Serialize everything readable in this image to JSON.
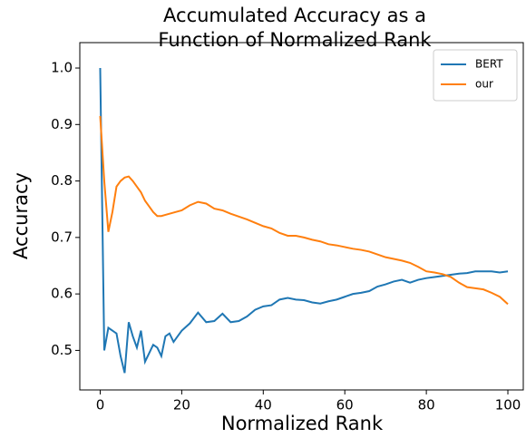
{
  "chart_data": {
    "type": "line",
    "title": [
      "Accumulated Accuracy as a",
      "Function of Normalized Rank"
    ],
    "xlabel": "Normalized Rank",
    "ylabel": "Accuracy",
    "x": [
      0,
      1,
      2,
      3,
      4,
      5,
      6,
      7,
      8,
      9,
      10,
      11,
      12,
      13,
      14,
      15,
      16,
      17,
      18,
      19,
      20,
      22,
      24,
      26,
      28,
      30,
      32,
      34,
      36,
      38,
      40,
      42,
      44,
      46,
      48,
      50,
      52,
      54,
      56,
      58,
      60,
      62,
      64,
      66,
      68,
      70,
      72,
      74,
      76,
      78,
      80,
      82,
      84,
      86,
      88,
      90,
      92,
      94,
      96,
      98,
      100
    ],
    "series": [
      {
        "name": "BERT",
        "color": "#1f77b4",
        "values": [
          1.0,
          0.5,
          0.54,
          0.535,
          0.53,
          0.49,
          0.46,
          0.55,
          0.525,
          0.505,
          0.535,
          0.48,
          0.495,
          0.51,
          0.505,
          0.49,
          0.525,
          0.53,
          0.515,
          0.525,
          0.535,
          0.548,
          0.567,
          0.55,
          0.552,
          0.565,
          0.55,
          0.552,
          0.56,
          0.572,
          0.578,
          0.58,
          0.59,
          0.593,
          0.59,
          0.589,
          0.585,
          0.583,
          0.587,
          0.59,
          0.595,
          0.6,
          0.602,
          0.605,
          0.613,
          0.617,
          0.622,
          0.625,
          0.62,
          0.625,
          0.628,
          0.63,
          0.632,
          0.634,
          0.636,
          0.637,
          0.64,
          0.64,
          0.64,
          0.638,
          0.64
        ]
      },
      {
        "name": "our",
        "color": "#ff7f0e",
        "values": [
          0.915,
          0.8,
          0.71,
          0.745,
          0.79,
          0.8,
          0.806,
          0.808,
          0.8,
          0.79,
          0.78,
          0.765,
          0.755,
          0.745,
          0.738,
          0.738,
          0.74,
          0.742,
          0.744,
          0.746,
          0.748,
          0.757,
          0.763,
          0.76,
          0.751,
          0.748,
          0.742,
          0.737,
          0.732,
          0.726,
          0.72,
          0.716,
          0.708,
          0.703,
          0.703,
          0.7,
          0.696,
          0.693,
          0.688,
          0.686,
          0.683,
          0.68,
          0.678,
          0.675,
          0.67,
          0.665,
          0.662,
          0.659,
          0.655,
          0.648,
          0.64,
          0.638,
          0.635,
          0.63,
          0.62,
          0.612,
          0.61,
          0.608,
          0.602,
          0.595,
          0.582
        ]
      }
    ],
    "xlim": [
      -5,
      104
    ],
    "xticks": [
      0,
      20,
      40,
      60,
      80,
      100
    ],
    "ylim": [
      0.43,
      1.045
    ],
    "yticks": [
      0.5,
      0.6,
      0.7,
      0.8,
      0.9,
      {
        "value": 1,
        "label": "1.0"
      }
    ],
    "legend": "upper right",
    "grid": false
  }
}
